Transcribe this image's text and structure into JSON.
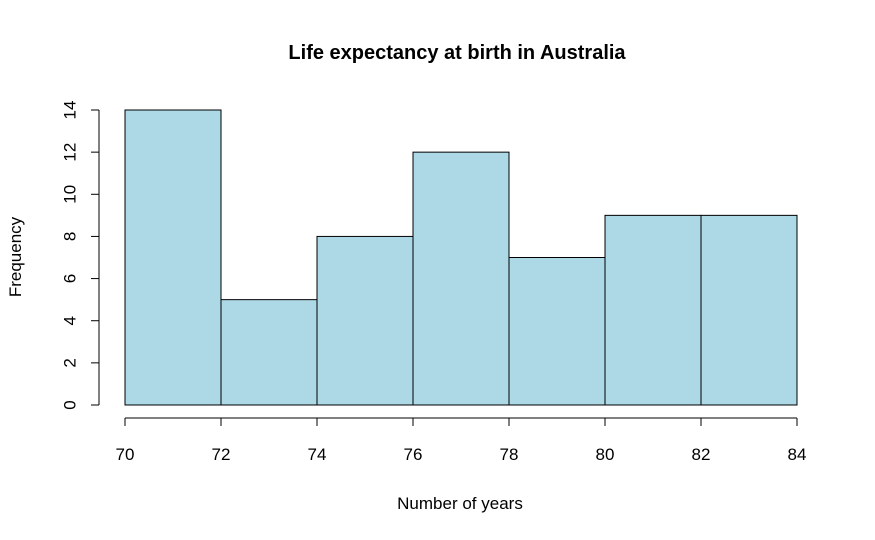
{
  "chart_data": {
    "type": "bar",
    "title": "Life expectancy at birth in Australia",
    "xlabel": "Number of years",
    "ylabel": "Frequency",
    "bins": [
      [
        70,
        72
      ],
      [
        72,
        74
      ],
      [
        74,
        76
      ],
      [
        76,
        78
      ],
      [
        78,
        80
      ],
      [
        80,
        82
      ],
      [
        82,
        84
      ]
    ],
    "values": [
      14,
      5,
      8,
      12,
      7,
      9,
      9
    ],
    "xlim": [
      70,
      84
    ],
    "ylim": [
      0,
      14
    ],
    "xticks": [
      70,
      72,
      74,
      76,
      78,
      80,
      82,
      84
    ],
    "yticks": [
      0,
      2,
      4,
      6,
      8,
      10,
      12,
      14
    ],
    "bar_color": "#add8e6",
    "grid": false,
    "legend": "none"
  }
}
